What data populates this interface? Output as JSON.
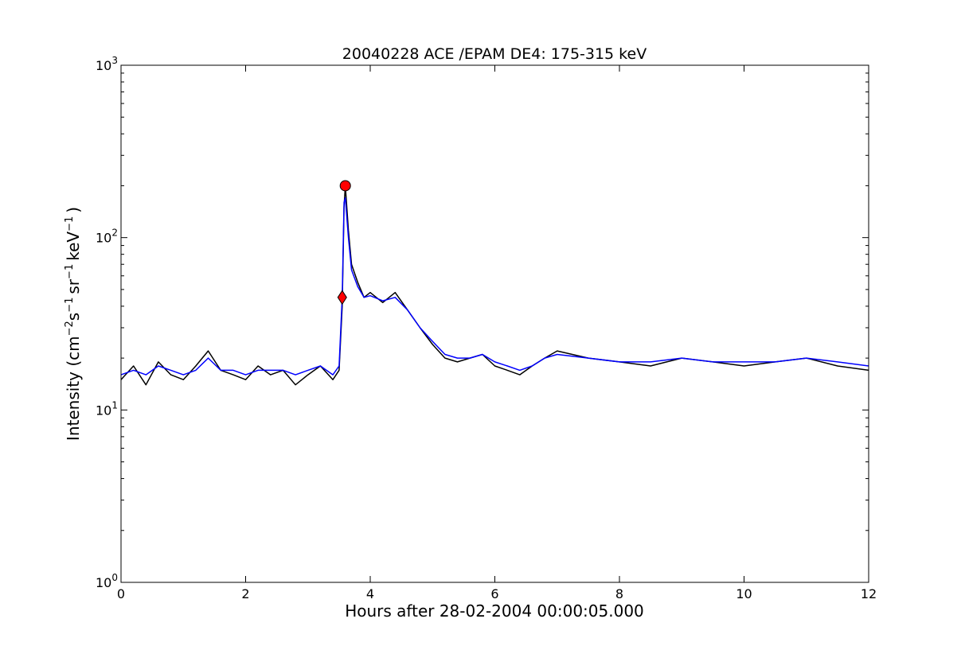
{
  "chart_data": {
    "type": "line",
    "title": "20040228 ACE /EPAM DE4: 175-315 keV",
    "xlabel": "Hours after 28-02-2004 00:00:05.000",
    "ylabel": {
      "prefix": "Intensity (cm",
      "sup1": "−2",
      "mid1": "s",
      "sup2": "−1",
      "mid2": "sr",
      "sup3": "−1",
      "mid3": "keV",
      "sup4": "−1",
      "suffix": ")"
    },
    "xlim": [
      0,
      12
    ],
    "ylim": [
      1,
      1000
    ],
    "yscale": "log",
    "grid": false,
    "x_ticks": [
      {
        "value": 0,
        "label": "0"
      },
      {
        "value": 2,
        "label": "2"
      },
      {
        "value": 4,
        "label": "4"
      },
      {
        "value": 6,
        "label": "6"
      },
      {
        "value": 8,
        "label": "8"
      },
      {
        "value": 10,
        "label": "10"
      },
      {
        "value": 12,
        "label": "12"
      }
    ],
    "y_ticks": [
      {
        "value": 1,
        "base": "10",
        "exp": "0"
      },
      {
        "value": 10,
        "base": "10",
        "exp": "1"
      },
      {
        "value": 100,
        "base": "10",
        "exp": "2"
      },
      {
        "value": 1000,
        "base": "10",
        "exp": "3"
      }
    ],
    "series": [
      {
        "color": "#000000",
        "x": [
          0.0,
          0.2,
          0.4,
          0.6,
          0.8,
          1.0,
          1.2,
          1.4,
          1.6,
          1.8,
          2.0,
          2.2,
          2.4,
          2.6,
          2.8,
          3.0,
          3.2,
          3.4,
          3.5,
          3.55,
          3.58,
          3.6,
          3.65,
          3.7,
          3.8,
          3.9,
          4.0,
          4.2,
          4.4,
          4.6,
          4.8,
          5.0,
          5.2,
          5.4,
          5.6,
          5.8,
          6.0,
          6.2,
          6.4,
          6.6,
          6.8,
          7.0,
          7.5,
          8.0,
          8.5,
          9.0,
          9.5,
          10.0,
          10.5,
          11.0,
          11.5,
          12.0
        ],
        "y": [
          15,
          18,
          14,
          19,
          16,
          15,
          18,
          22,
          17,
          16,
          15,
          18,
          16,
          17,
          14,
          16,
          18,
          15,
          17,
          40,
          150,
          200,
          110,
          70,
          55,
          45,
          48,
          42,
          48,
          38,
          30,
          24,
          20,
          19,
          20,
          21,
          18,
          17,
          16,
          18,
          20,
          22,
          20,
          19,
          18,
          20,
          19,
          18,
          19,
          20,
          18,
          17
        ]
      },
      {
        "color": "#0000ff",
        "x": [
          0.0,
          0.2,
          0.4,
          0.6,
          0.8,
          1.0,
          1.2,
          1.4,
          1.6,
          1.8,
          2.0,
          2.2,
          2.4,
          2.6,
          2.8,
          3.0,
          3.2,
          3.4,
          3.5,
          3.55,
          3.58,
          3.6,
          3.65,
          3.7,
          3.8,
          3.9,
          4.0,
          4.2,
          4.4,
          4.6,
          4.8,
          5.0,
          5.2,
          5.4,
          5.6,
          5.8,
          6.0,
          6.2,
          6.4,
          6.6,
          6.8,
          7.0,
          7.5,
          8.0,
          8.5,
          9.0,
          9.5,
          10.0,
          10.5,
          11.0,
          11.5,
          12.0
        ],
        "y": [
          16,
          17,
          16,
          18,
          17,
          16,
          17,
          20,
          17,
          17,
          16,
          17,
          17,
          17,
          16,
          17,
          18,
          16,
          18,
          45,
          160,
          170,
          100,
          65,
          52,
          45,
          46,
          43,
          45,
          38,
          30,
          25,
          21,
          20,
          20,
          21,
          19,
          18,
          17,
          18,
          20,
          21,
          20,
          19,
          19,
          20,
          19,
          19,
          19,
          20,
          19,
          18
        ]
      }
    ],
    "markers": [
      {
        "shape": "circle",
        "x": 3.6,
        "y": 200,
        "color": "#ff0000"
      },
      {
        "shape": "diamond",
        "x": 3.55,
        "y": 45,
        "color": "#ff0000"
      }
    ]
  }
}
